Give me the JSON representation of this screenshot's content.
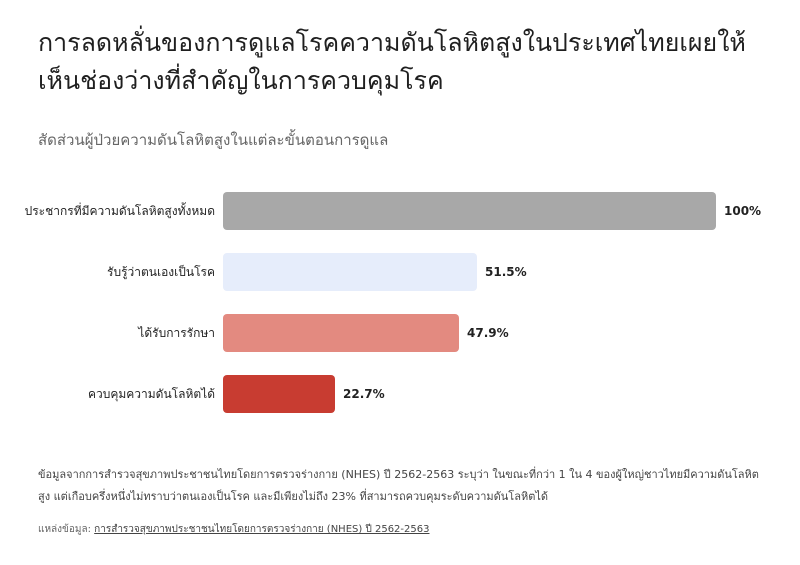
{
  "title": "การลดหลั่นของการดูแลโรคความดันโลหิตสูงในประเทศไทยเผยให้เห็นช่องว่างที่สำคัญในการควบคุมโรค",
  "subtitle": "สัดส่วนผู้ป่วยความดันโลหิตสูงในแต่ละขั้นตอนการดูแล",
  "note": "ข้อมูลจากการสำรวจสุขภาพประชาชนไทยโดยการตรวจร่างกาย (NHES) ปี 2562-2563 ระบุว่า ในขณะที่กว่า 1 ใน 4 ของผู้ใหญ่ชาวไทยมีความดันโลหิตสูง แต่เกือบครึ่งหนึ่งไม่ทราบว่าตนเองเป็นโรค และมีเพียงไม่ถึง 23% ที่สามารถควบคุมระดับความดันโลหิตได้",
  "source": {
    "prefix": "แหล่งข้อมูล:",
    "link_text": "การสำรวจสุขภาพประชาชนไทยโดยการตรวจร่างกาย (NHES) ปี 2562-2563"
  },
  "chart_data": {
    "type": "bar",
    "orientation": "horizontal",
    "categories": [
      "ประชากรที่มีความดันโลหิตสูงทั้งหมด",
      "รับรู้ว่าตนเองเป็นโรค",
      "ได้รับการรักษา",
      "ควบคุมความดันโลหิตได้"
    ],
    "values": [
      100,
      51.5,
      47.9,
      22.7
    ],
    "value_labels": [
      "100%",
      "51.5%",
      "47.9%",
      "22.7%"
    ],
    "colors": [
      "#a8a8a8",
      "#e6edfb",
      "#e38a80",
      "#c83c31"
    ],
    "xlim": [
      0,
      100
    ],
    "grid": false,
    "legend": "none"
  }
}
